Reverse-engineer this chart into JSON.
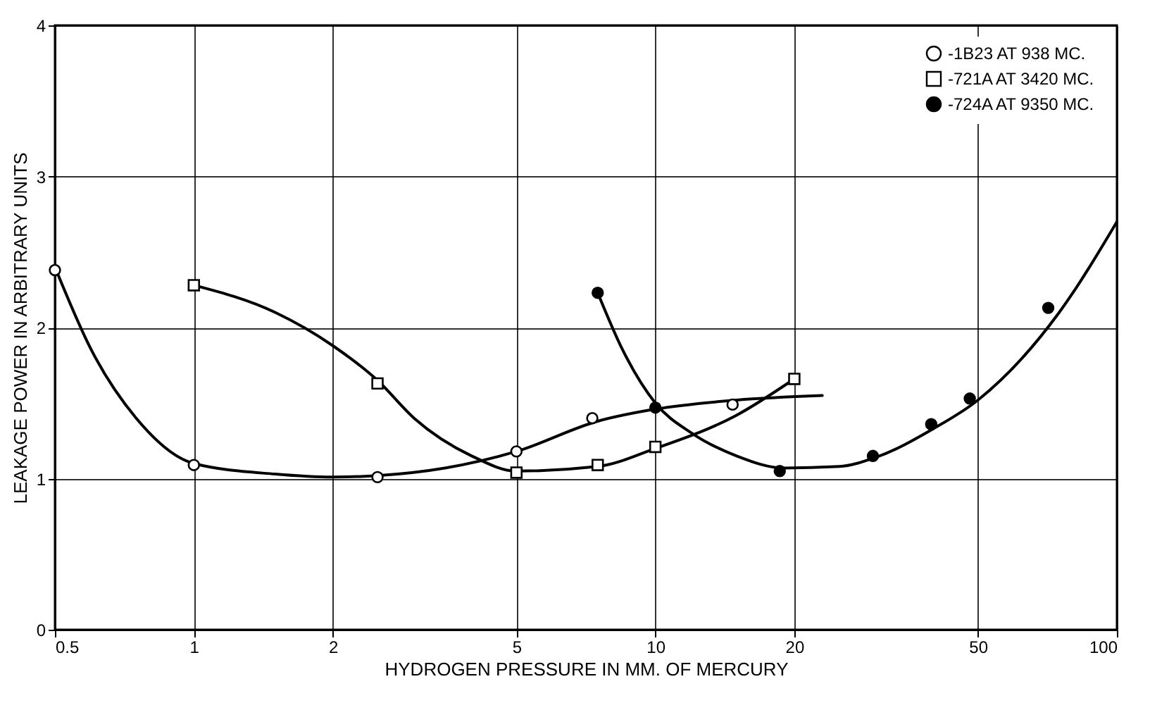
{
  "chart_data": {
    "type": "scatter",
    "xlabel": "HYDROGEN PRESSURE IN MM. OF MERCURY",
    "ylabel": "LEAKAGE POWER IN ARBITRARY UNITS",
    "log": "x",
    "xlim": [
      0.5,
      100
    ],
    "xticks": [
      0.5,
      1,
      2,
      5,
      10,
      20,
      50,
      100
    ],
    "ylim": [
      0,
      4
    ],
    "yticks": [
      0,
      1,
      2,
      3,
      4
    ],
    "grid": true,
    "legend": "top right",
    "series": [
      {
        "name": "-1B23 AT 938 MC.",
        "marker": "circle",
        "color": "#ffffff",
        "x": [
          0.5,
          1,
          2.5,
          5,
          7.3,
          14.7
        ],
        "values": [
          2.38,
          1.09,
          1.01,
          1.18,
          1.4,
          1.49
        ]
      },
      {
        "name": "-721A AT 3420 MC.",
        "marker": "square",
        "color": "#ffffff",
        "x": [
          1,
          2.5,
          5,
          7.5,
          10,
          20
        ],
        "values": [
          2.28,
          1.63,
          1.04,
          1.09,
          1.21,
          1.66
        ]
      },
      {
        "name": "-724A AT 9350 MC.",
        "marker": "circle",
        "color": "#000000",
        "x": [
          7.5,
          10,
          18.6,
          29.6,
          39.6,
          48,
          71
        ],
        "values": [
          2.23,
          1.47,
          1.05,
          1.15,
          1.36,
          1.53,
          2.13
        ]
      },
      {
        "type": "line",
        "color": "#000000",
        "x": [
          0.5,
          0.6,
          0.75,
          1,
          1.5,
          2,
          2.5,
          3.5,
          5,
          7.5,
          10,
          15,
          23
        ],
        "values": [
          2.4,
          1.85,
          1.4,
          1.1,
          1.03,
          1.01,
          1.02,
          1.07,
          1.18,
          1.38,
          1.46,
          1.52,
          1.55
        ]
      },
      {
        "type": "line",
        "color": "#000000",
        "x": [
          1,
          1.5,
          2,
          2.5,
          3,
          4,
          5,
          7.5,
          10,
          15,
          20
        ],
        "values": [
          2.28,
          2.1,
          1.88,
          1.65,
          1.4,
          1.15,
          1.05,
          1.08,
          1.2,
          1.42,
          1.66
        ]
      },
      {
        "type": "line",
        "color": "#000000",
        "x": [
          7.5,
          8.5,
          10,
          12,
          15,
          19,
          25,
          30,
          40,
          50,
          75,
          100
        ],
        "values": [
          2.23,
          1.85,
          1.5,
          1.3,
          1.15,
          1.07,
          1.08,
          1.14,
          1.33,
          1.52,
          2.1,
          2.7
        ]
      }
    ]
  }
}
